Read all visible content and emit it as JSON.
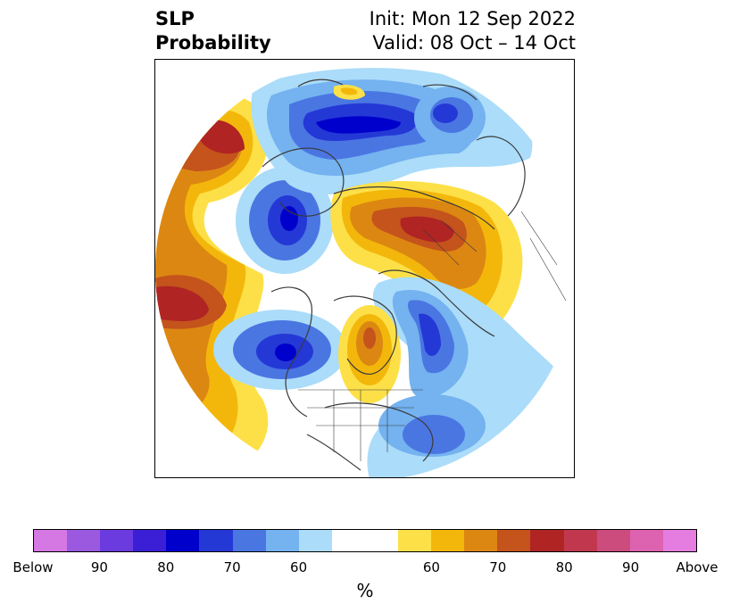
{
  "title": {
    "left_line1": "SLP",
    "left_line2": "Probability",
    "right_line1": "Init: Mon 12 Sep 2022",
    "right_line2": "Valid: 08 Oct – 14 Oct"
  },
  "map": {
    "projection": "north polar stereographic",
    "field": "SLP probability",
    "colors": {
      "above_60": "#fde047",
      "above_65": "#f3b70c",
      "above_70": "#dc8712",
      "above_75": "#c4531c",
      "above_80": "#b02424",
      "below_60": "#abdcf9",
      "below_65": "#74b2f0",
      "below_70": "#4a76e2",
      "below_75": "#2438d6",
      "below_80": "#0000cc",
      "coastline": "#3a3a3a"
    }
  },
  "colorbar": {
    "segments": [
      "#d678e4",
      "#9b59e0",
      "#6b3be0",
      "#3b1fd6",
      "#0000cc",
      "#2438d6",
      "#4a76e2",
      "#74b2f0",
      "#abdcf9",
      "#ffffff",
      "#ffffff",
      "#fde047",
      "#f3b70c",
      "#dc8712",
      "#c4531c",
      "#b02424",
      "#c1384e",
      "#cc4c7e",
      "#dd62b0",
      "#e57ce0"
    ],
    "tick_labels": [
      "Below",
      "90",
      "80",
      "70",
      "60",
      "60",
      "70",
      "80",
      "90",
      "Above"
    ],
    "unit": "%"
  }
}
